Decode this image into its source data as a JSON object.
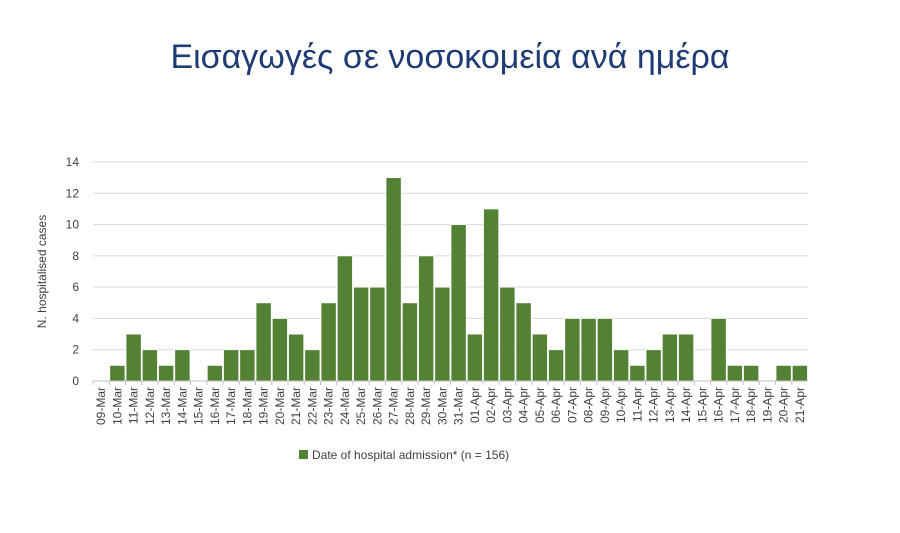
{
  "title": "Εισαγωγές σε νοσοκομεία ανά ημέρα",
  "colors": {
    "bar": "#548235",
    "title": "#1f3b73",
    "grid": "#d9d9d9",
    "text": "#404040"
  },
  "chart_data": {
    "type": "bar",
    "title": "Εισαγωγές σε νοσοκομεία ανά ημέρα",
    "xlabel": "",
    "ylabel": "N. hospitalised cases",
    "ylim": [
      0,
      14
    ],
    "yticks": [
      0,
      2,
      4,
      6,
      8,
      10,
      12,
      14
    ],
    "grid": true,
    "legend_position": "bottom",
    "categories": [
      "09-Mar",
      "10-Mar",
      "11-Mar",
      "12-Mar",
      "13-Mar",
      "14-Mar",
      "15-Mar",
      "16-Mar",
      "17-Mar",
      "18-Mar",
      "19-Mar",
      "20-Mar",
      "21-Mar",
      "22-Mar",
      "23-Mar",
      "24-Mar",
      "25-Mar",
      "26-Mar",
      "27-Mar",
      "28-Mar",
      "29-Mar",
      "30-Mar",
      "31-Mar",
      "01-Apr",
      "02-Apr",
      "03-Apr",
      "04-Apr",
      "05-Apr",
      "06-Apr",
      "07-Apr",
      "08-Apr",
      "09-Apr",
      "10-Apr",
      "11-Apr",
      "12-Apr",
      "13-Apr",
      "14-Apr",
      "15-Apr",
      "16-Apr",
      "17-Apr",
      "18-Apr",
      "19-Apr",
      "20-Apr",
      "21-Apr"
    ],
    "series": [
      {
        "name": "Date of hospital admission* (n = 156)",
        "values": [
          0,
          1,
          3,
          2,
          1,
          2,
          0,
          1,
          2,
          2,
          5,
          4,
          3,
          2,
          5,
          8,
          6,
          6,
          13,
          5,
          8,
          6,
          10,
          3,
          11,
          6,
          5,
          3,
          2,
          4,
          4,
          4,
          2,
          1,
          2,
          3,
          3,
          0,
          4,
          1,
          1,
          0,
          1,
          1
        ]
      }
    ]
  }
}
